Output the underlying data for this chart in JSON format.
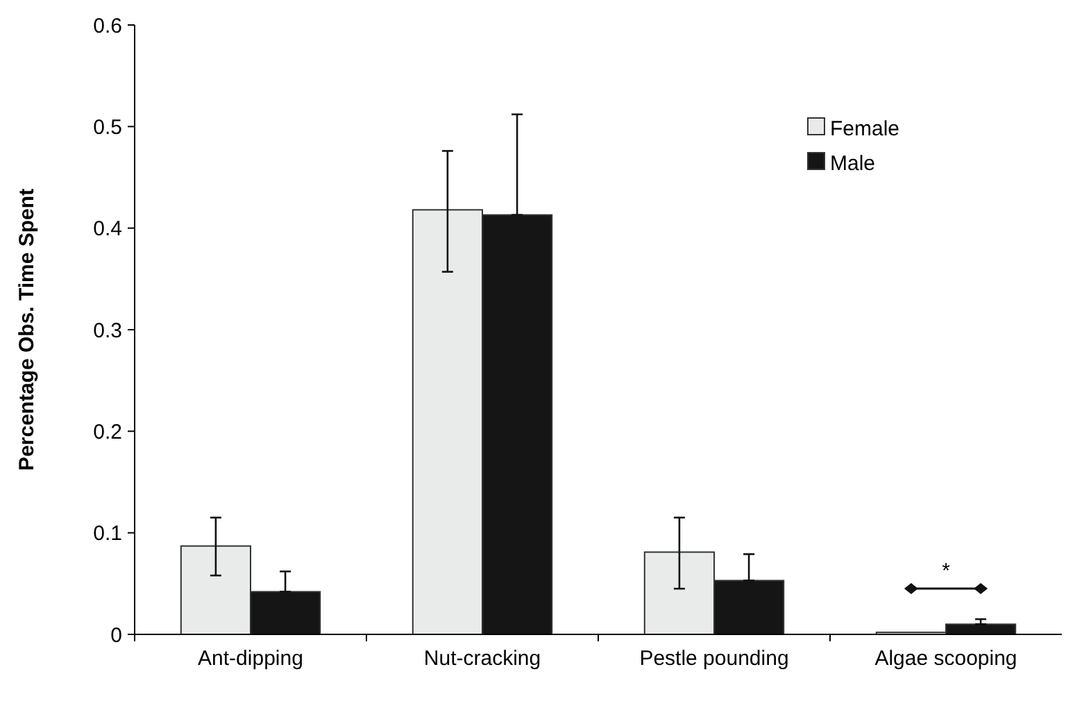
{
  "chart_data": {
    "type": "bar",
    "ylabel": "Percentage Obs. Time Spent",
    "categories": [
      "Ant-dipping",
      "Nut-cracking",
      "Pestle pounding",
      "Algae scooping"
    ],
    "series": [
      {
        "name": "Female",
        "color": "#e9eaea",
        "values": [
          0.087,
          0.418,
          0.081,
          0.002
        ],
        "errors": [
          [
            0.058,
            0.115
          ],
          [
            0.357,
            0.476
          ],
          [
            0.045,
            0.115
          ],
          null
        ]
      },
      {
        "name": "Male",
        "color": "#151515",
        "values": [
          0.042,
          0.413,
          0.053,
          0.01
        ],
        "errors": [
          [
            0.042,
            0.062
          ],
          [
            0.413,
            0.512
          ],
          [
            0.053,
            0.079
          ],
          [
            0.01,
            0.015
          ]
        ]
      }
    ],
    "ylim": [
      0,
      0.6
    ],
    "yticks": [
      {
        "value": 0,
        "label": "0"
      },
      0.1,
      0.2,
      0.3,
      0.4,
      0.5,
      0.6
    ],
    "legend": "top right",
    "grid": false,
    "annotations": [
      "*"
    ]
  }
}
